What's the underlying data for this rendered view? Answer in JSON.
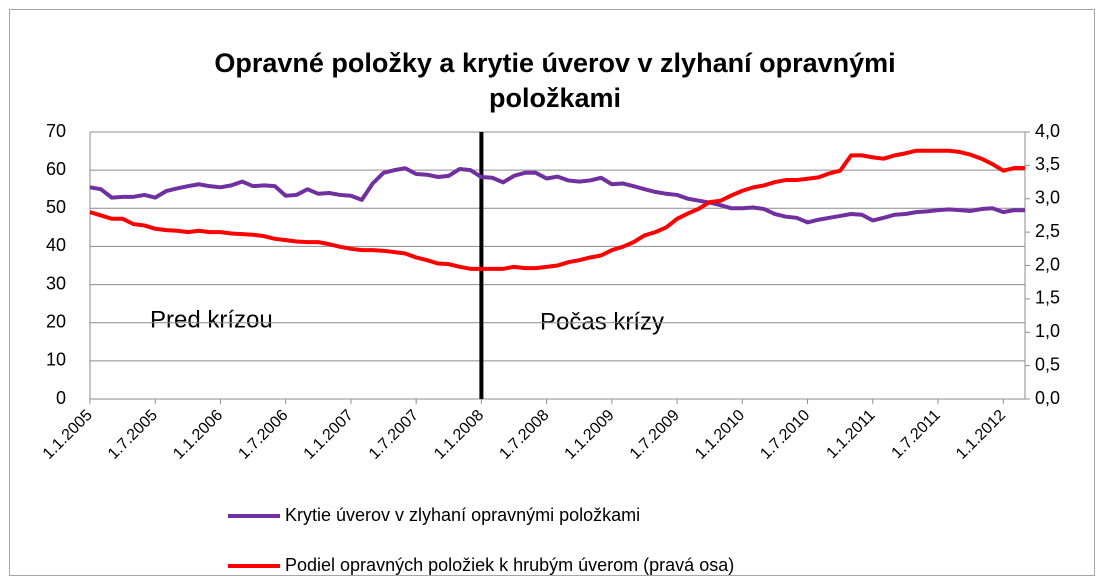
{
  "chart_data": {
    "type": "line",
    "title": "Opravné položky a krytie úverov v zlyhaní opravnými položkami",
    "categories": [
      "1.1.2005",
      null,
      null,
      null,
      null,
      null,
      "1.7.2005",
      null,
      null,
      null,
      null,
      null,
      "1.1.2006",
      null,
      null,
      null,
      null,
      null,
      "1.7.2006",
      null,
      null,
      null,
      null,
      null,
      "1.1.2007",
      null,
      null,
      null,
      null,
      null,
      "1.7.2007",
      null,
      null,
      null,
      null,
      null,
      "1.1.2008",
      null,
      null,
      null,
      null,
      null,
      "1.7.2008",
      null,
      null,
      null,
      null,
      null,
      "1.1.2009",
      null,
      null,
      null,
      null,
      null,
      "1.7.2009",
      null,
      null,
      null,
      null,
      null,
      "1.1.2010",
      null,
      null,
      null,
      null,
      null,
      "1.7.2010",
      null,
      null,
      null,
      null,
      null,
      "1.1.2011",
      null,
      null,
      null,
      null,
      null,
      "1.7.2011",
      null,
      null,
      null,
      null,
      null,
      "1.1.2012",
      null,
      null
    ],
    "series": [
      {
        "name": "Krytie úverov v zlyhaní opravnými položkami",
        "color": "#7030a0",
        "axis": "y",
        "values": [
          55.5,
          55,
          52.8,
          53,
          53,
          53.5,
          52.8,
          54.5,
          55.2,
          55.8,
          56.3,
          55.8,
          55.5,
          56,
          57,
          55.8,
          56,
          55.8,
          53.3,
          53.5,
          55,
          53.8,
          54,
          53.5,
          53.3,
          52.2,
          56.5,
          59.3,
          60,
          60.5,
          59,
          58.8,
          58.2,
          58.5,
          60.3,
          60,
          58.2,
          58,
          56.8,
          58.5,
          59.3,
          59.3,
          57.8,
          58.3,
          57.3,
          57,
          57.3,
          58,
          56.3,
          56.5,
          55.8,
          55,
          54.3,
          53.8,
          53.5,
          52.5,
          52,
          51.5,
          50.8,
          50,
          50,
          50.2,
          49.8,
          48.5,
          47.8,
          47.5,
          46.3,
          47,
          47.5,
          48,
          48.5,
          48.3,
          46.8,
          47.5,
          48.3,
          48.5,
          49,
          49.2,
          49.5,
          49.7,
          49.5,
          49.3,
          49.8,
          50,
          49,
          49.5,
          49.5
        ]
      },
      {
        "name": "Podiel opravných položiek k hrubým úverom (pravá osa)",
        "color": "#ff0000",
        "axis": "y2",
        "values": [
          2.8,
          2.75,
          2.7,
          2.7,
          2.62,
          2.6,
          2.55,
          2.53,
          2.52,
          2.5,
          2.52,
          2.5,
          2.5,
          2.48,
          2.47,
          2.46,
          2.44,
          2.4,
          2.38,
          2.36,
          2.35,
          2.35,
          2.32,
          2.28,
          2.25,
          2.23,
          2.23,
          2.22,
          2.2,
          2.18,
          2.12,
          2.08,
          2.03,
          2.02,
          1.98,
          1.95,
          1.95,
          1.95,
          1.95,
          1.98,
          1.96,
          1.96,
          1.98,
          2.0,
          2.05,
          2.08,
          2.12,
          2.15,
          2.23,
          2.28,
          2.35,
          2.45,
          2.5,
          2.57,
          2.7,
          2.78,
          2.85,
          2.95,
          2.97,
          3.05,
          3.12,
          3.17,
          3.2,
          3.25,
          3.28,
          3.28,
          3.3,
          3.32,
          3.38,
          3.42,
          3.65,
          3.65,
          3.62,
          3.6,
          3.65,
          3.68,
          3.72,
          3.72,
          3.72,
          3.72,
          3.7,
          3.66,
          3.6,
          3.52,
          3.42,
          3.46,
          3.46
        ]
      }
    ],
    "ylim": [
      0,
      70
    ],
    "yticks": [
      0,
      10,
      20,
      30,
      40,
      50,
      60,
      70
    ],
    "y2lim": [
      0,
      4
    ],
    "y2ticks": [
      {
        "value": 0,
        "label": "0,0"
      },
      {
        "value": 0.5,
        "label": "0,5"
      },
      {
        "value": 1,
        "label": "1,0"
      },
      {
        "value": 1.5,
        "label": "1,5"
      },
      {
        "value": 2,
        "label": "2,0"
      },
      {
        "value": 2.5,
        "label": "2,5"
      },
      {
        "value": 3,
        "label": "3,0"
      },
      {
        "value": 3.5,
        "label": "3,5"
      },
      {
        "value": 4,
        "label": "4,0"
      }
    ],
    "grid": true,
    "legend": "bottom",
    "annotations": [
      "Pred krízou",
      "Počas krízy"
    ],
    "vline_category": "1.1.2008"
  }
}
